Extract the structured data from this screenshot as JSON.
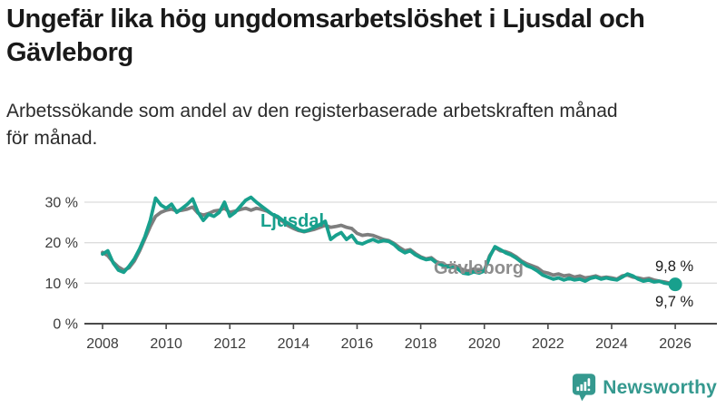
{
  "header": {
    "title": "Ungefär lika hög ungdomsarbetslöshet i Ljusdal och Gävleborg",
    "subtitle": "Arbetssökande som andel av den registerbaserade arbetskraften månad för månad."
  },
  "chart_data": {
    "type": "line",
    "title": "Ungefär lika hög ungdomsarbetslöshet i Ljusdal och Gävleborg",
    "subtitle": "Arbetssökande som andel av den registerbaserade arbetskraften månad för månad.",
    "xlabel": "",
    "ylabel": "",
    "x_unit": "year",
    "x_start": 2008,
    "x_step_years": 0.16667,
    "xlim": [
      2007.75,
      2026.6
    ],
    "ylim": [
      0,
      33
    ],
    "grid": "horizontal",
    "x_ticks": [
      2008,
      2010,
      2012,
      2014,
      2016,
      2018,
      2020,
      2022,
      2024,
      2026
    ],
    "x_tick_labels": [
      "2008",
      "2010",
      "2012",
      "2014",
      "2016",
      "2018",
      "2020",
      "2022",
      "2024",
      "2026"
    ],
    "y_ticks": [
      0,
      10,
      20,
      30
    ],
    "y_tick_labels": [
      "0 %",
      "10 %",
      "20 %",
      "30 %"
    ],
    "series": [
      {
        "name": "Ljusdal",
        "color": "#18A08D",
        "label_color": "#18A08D",
        "end_label": "9,7 %",
        "marker_end": true,
        "values": [
          17.2,
          18.0,
          15.0,
          13.2,
          12.7,
          14.2,
          16.0,
          18.5,
          21.5,
          25.5,
          31.0,
          29.3,
          28.5,
          29.5,
          27.5,
          28.5,
          29.5,
          30.8,
          27.5,
          25.5,
          27.0,
          26.5,
          27.5,
          30.0,
          26.5,
          27.5,
          29.0,
          30.5,
          31.2,
          30.0,
          29.0,
          28.0,
          27.0,
          26.5,
          25.5,
          24.8,
          24.0,
          23.2,
          22.8,
          23.2,
          23.8,
          24.5,
          25.3,
          20.8,
          21.8,
          22.5,
          20.8,
          21.8,
          20.0,
          19.7,
          20.3,
          20.8,
          20.2,
          20.5,
          20.3,
          19.5,
          18.3,
          17.5,
          18.0,
          17.0,
          16.3,
          15.8,
          16.0,
          15.0,
          14.5,
          14.0,
          14.2,
          13.5,
          12.5,
          12.3,
          12.8,
          12.5,
          13.0,
          16.5,
          19.0,
          18.3,
          17.5,
          17.0,
          16.2,
          15.2,
          14.3,
          13.8,
          13.0,
          12.0,
          11.5,
          11.0,
          11.3,
          10.8,
          11.2,
          10.8,
          11.0,
          10.5,
          11.2,
          11.5,
          11.0,
          11.3,
          11.0,
          10.8,
          11.5,
          12.3,
          11.8,
          11.0,
          10.5,
          10.8,
          10.3,
          10.5,
          10.0,
          9.8,
          9.7
        ]
      },
      {
        "name": "Gävleborg",
        "color": "#7E7E7E",
        "label_color": "#8D8D8D",
        "end_label": "9,8 %",
        "marker_end": false,
        "values": [
          17.6,
          16.8,
          15.2,
          14.0,
          13.2,
          13.8,
          15.5,
          18.0,
          21.0,
          24.0,
          26.5,
          27.5,
          28.0,
          28.3,
          27.8,
          28.0,
          28.3,
          28.8,
          27.3,
          26.8,
          27.2,
          27.8,
          28.0,
          28.5,
          27.5,
          27.8,
          28.2,
          28.5,
          28.0,
          28.5,
          28.2,
          27.8,
          27.0,
          26.2,
          25.2,
          24.2,
          23.5,
          23.0,
          22.7,
          23.0,
          23.3,
          23.8,
          24.3,
          23.8,
          24.0,
          24.3,
          23.8,
          23.5,
          22.3,
          21.8,
          22.0,
          21.8,
          21.3,
          20.8,
          20.5,
          19.8,
          18.8,
          18.0,
          18.3,
          17.3,
          16.5,
          16.0,
          16.3,
          15.3,
          14.8,
          14.3,
          14.5,
          14.0,
          13.3,
          13.0,
          13.5,
          13.0,
          13.2,
          16.8,
          18.8,
          18.0,
          17.8,
          17.3,
          16.5,
          15.5,
          14.8,
          14.3,
          13.8,
          12.8,
          12.5,
          12.0,
          12.3,
          11.8,
          12.0,
          11.5,
          11.8,
          11.3,
          11.5,
          11.8,
          11.3,
          11.5,
          11.3,
          11.0,
          11.8,
          12.0,
          11.5,
          11.3,
          11.0,
          11.2,
          10.8,
          10.5,
          10.3,
          10.0,
          9.8
        ]
      }
    ],
    "legend_position": "inline-labels"
  },
  "footer": {
    "brand": "Newsworthy",
    "brand_color": "#35998F"
  }
}
